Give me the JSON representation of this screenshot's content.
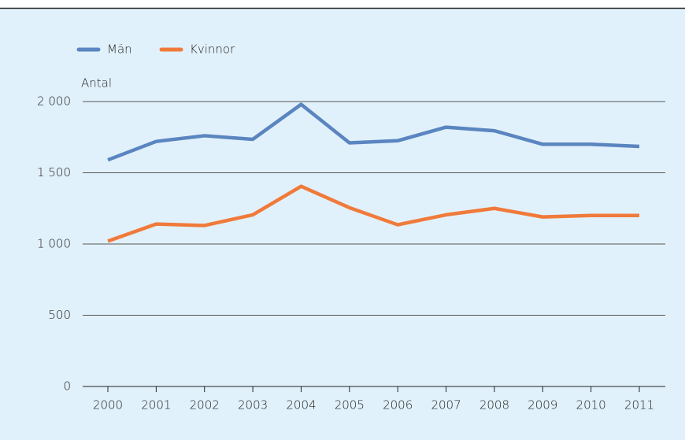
{
  "chart_data": {
    "type": "line",
    "y_label": "Antal",
    "categories": [
      "2000",
      "2001",
      "2002",
      "2003",
      "2004",
      "2005",
      "2006",
      "2007",
      "2008",
      "2009",
      "2010",
      "2011"
    ],
    "series": [
      {
        "name": "Män",
        "color": "#5a85c0",
        "values": [
          1590,
          1720,
          1760,
          1735,
          1980,
          1710,
          1725,
          1820,
          1795,
          1700,
          1700,
          1685
        ]
      },
      {
        "name": "Kvinnor",
        "color": "#f07a3a",
        "values": [
          1020,
          1140,
          1130,
          1205,
          1405,
          1255,
          1135,
          1205,
          1250,
          1190,
          1200,
          1200
        ]
      }
    ],
    "ylim": [
      0,
      2000
    ],
    "yticks": [
      0,
      500,
      {
        "value": 1000,
        "label": "1 000"
      },
      {
        "value": 1500,
        "label": "1 500"
      },
      {
        "value": 2000,
        "label": "2 000"
      }
    ],
    "grid": true,
    "legend": "top-left"
  }
}
